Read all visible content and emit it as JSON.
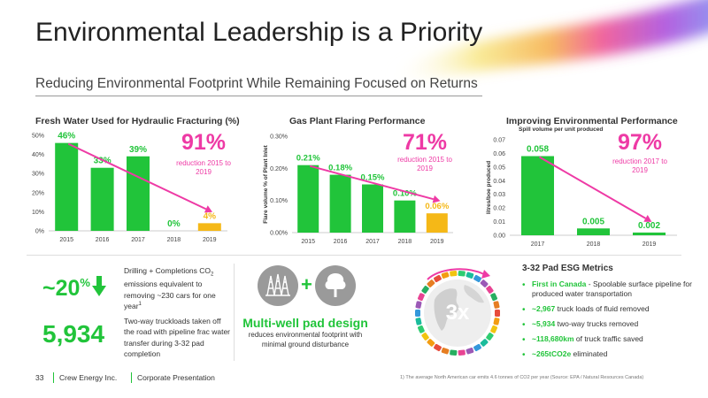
{
  "title": "Environmental Leadership is a Priority",
  "subtitle": "Reducing Environmental Footprint While Remaining Focused on Returns",
  "colors": {
    "green": "#21c43a",
    "orange": "#f5b817",
    "pink": "#ee3aa5",
    "text": "#333333"
  },
  "chart_data": [
    {
      "type": "bar",
      "title": "Fresh Water Used for Hydraulic Fracturing (%)",
      "categories": [
        "2015",
        "2016",
        "2017",
        "2018",
        "2019"
      ],
      "values": [
        46,
        33,
        39,
        0,
        4
      ],
      "data_labels": [
        "46%",
        "33%",
        "39%",
        "0%",
        "4%"
      ],
      "yticks": [
        "0%",
        "10%",
        "20%",
        "30%",
        "40%",
        "50%"
      ],
      "ylim": [
        0,
        50
      ],
      "highlight_index": 4,
      "trend_arrow": true,
      "callout_value": "91%",
      "callout_label": "reduction 2015 to 2019"
    },
    {
      "type": "bar",
      "title": "Gas Plant Flaring Performance",
      "ylabel": "Flare volume % of Plant Inlet",
      "categories": [
        "2015",
        "2016",
        "2017",
        "2018",
        "2019"
      ],
      "values": [
        0.21,
        0.18,
        0.15,
        0.1,
        0.06
      ],
      "data_labels": [
        "0.21%",
        "0.18%",
        "0.15%",
        "0.10%",
        "0.06%"
      ],
      "yticks": [
        "0.00%",
        "0.10%",
        "0.20%",
        "0.30%"
      ],
      "ylim": [
        0,
        0.3
      ],
      "highlight_index": 4,
      "trend_arrow": true,
      "callout_value": "71%",
      "callout_label": "reduction 2015 to 2019"
    },
    {
      "type": "bar",
      "title": "Improving Environmental Performance",
      "subtitle": "Spill volume per unit produced",
      "ylabel": "litres/boe produced",
      "categories": [
        "2017",
        "2018",
        "2019"
      ],
      "values": [
        0.058,
        0.005,
        0.002
      ],
      "data_labels": [
        "0.058",
        "0.005",
        "0.002"
      ],
      "yticks": [
        "0.00",
        "0.01",
        "0.02",
        "0.03",
        "0.04",
        "0.05",
        "0.06",
        "0.07"
      ],
      "ylim": [
        0,
        0.07
      ],
      "highlight_index": -1,
      "trend_arrow": true,
      "callout_value": "97%",
      "callout_label": "reduction 2017 to 2019"
    }
  ],
  "emissions": {
    "value": "~20",
    "unit": "%",
    "text": "Drilling + Completions CO",
    "sub": "2",
    "text_rest": " emissions equivalent to removing ~230 cars for one year",
    "footnote_mark": "1"
  },
  "trucks": {
    "value": "5,934",
    "text": "Two-way truckloads taken off the road with pipeline frac water transfer during 3-32 pad completion"
  },
  "multiwell": {
    "title": "Multi-well pad design",
    "desc": "reduces environmental footprint with minimal ground disturbance",
    "icon_left": "drilling-rigs-icon",
    "icon_right": "tree-icon",
    "plus": "+"
  },
  "globe": {
    "label": "3x",
    "icon": "globe-trucks-icon"
  },
  "esg": {
    "title": "3-32 Pad ESG Metrics",
    "items": [
      {
        "hl": "First in Canada",
        "rest": " - Spoolable surface pipeline for produced water transportation"
      },
      {
        "hl": "~2,967",
        "rest": " truck loads of fluid removed"
      },
      {
        "hl": "~5,934",
        "rest": " two-way trucks removed"
      },
      {
        "hl": "~118,680km",
        "rest": " of truck traffic saved"
      },
      {
        "hl": "~265tCO2e",
        "rest": " eliminated"
      }
    ]
  },
  "footer": {
    "page": "33",
    "company": "Crew Energy Inc.",
    "doc": "Corporate Presentation",
    "footnote": "1)      The average North American car emits 4.6 tonnes of CO2 per year (Source: EPA / Natural Resources Canada)"
  }
}
